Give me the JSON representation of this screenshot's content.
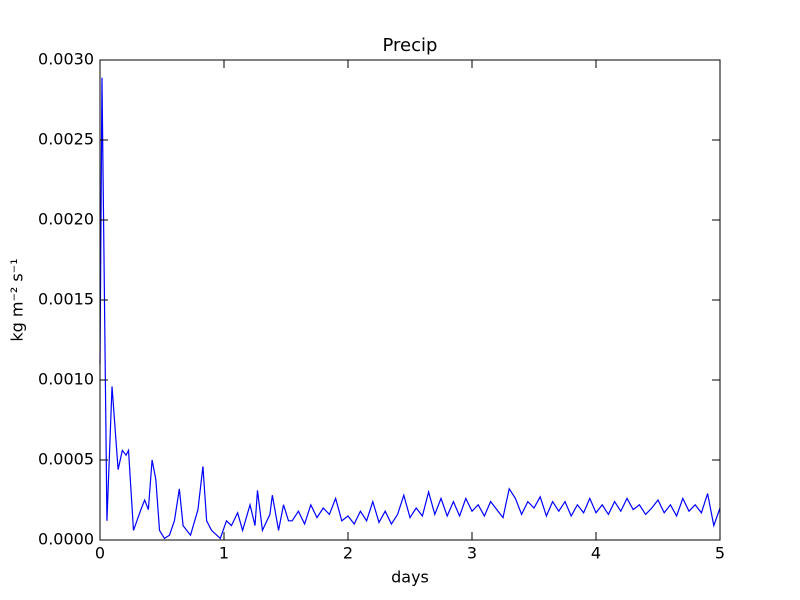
{
  "chart_data": {
    "type": "line",
    "title": "Precip",
    "x_label": "days",
    "y_label": "kg m⁻² s⁻¹",
    "color": "#0000ff",
    "x": [
      0,
      0.016,
      0.056,
      0.097,
      0.146,
      0.18,
      0.21,
      0.23,
      0.27,
      0.33,
      0.36,
      0.39,
      0.42,
      0.45,
      0.48,
      0.52,
      0.56,
      0.6,
      0.64,
      0.67,
      0.73,
      0.79,
      0.83,
      0.86,
      0.9,
      0.97,
      1.02,
      1.06,
      1.11,
      1.15,
      1.21,
      1.25,
      1.27,
      1.31,
      1.37,
      1.39,
      1.44,
      1.48,
      1.52,
      1.55,
      1.6,
      1.65,
      1.7,
      1.75,
      1.8,
      1.85,
      1.9,
      1.95,
      2.0,
      2.05,
      2.1,
      2.15,
      2.2,
      2.25,
      2.3,
      2.35,
      2.4,
      2.45,
      2.5,
      2.55,
      2.6,
      2.65,
      2.7,
      2.75,
      2.8,
      2.85,
      2.9,
      2.95,
      3.0,
      3.05,
      3.1,
      3.15,
      3.2,
      3.25,
      3.3,
      3.35,
      3.4,
      3.45,
      3.5,
      3.55,
      3.6,
      3.65,
      3.7,
      3.75,
      3.8,
      3.85,
      3.9,
      3.95,
      4.0,
      4.05,
      4.1,
      4.15,
      4.2,
      4.25,
      4.3,
      4.35,
      4.4,
      4.45,
      4.5,
      4.55,
      4.6,
      4.65,
      4.7,
      4.75,
      4.8,
      4.85,
      4.9,
      4.95,
      5.0
    ],
    "values": [
      0.0011,
      0.00289,
      0.00012,
      0.00096,
      0.00044,
      0.00056,
      0.00053,
      0.00056,
      6e-05,
      0.00019,
      0.00025,
      0.00019,
      0.0005,
      0.00038,
      6e-05,
      1e-05,
      3e-05,
      0.00012,
      0.00032,
      9e-05,
      3e-05,
      0.00019,
      0.00046,
      0.00012,
      6e-05,
      1e-05,
      0.00012,
      9e-05,
      0.00017,
      6e-05,
      0.00022,
      9e-05,
      0.00031,
      6e-05,
      0.00016,
      0.00028,
      6e-05,
      0.00022,
      0.00012,
      0.00012,
      0.00018,
      0.0001,
      0.00022,
      0.00014,
      0.0002,
      0.00016,
      0.00026,
      0.00012,
      0.00015,
      0.0001,
      0.00018,
      0.00012,
      0.00024,
      0.00011,
      0.00018,
      0.0001,
      0.00016,
      0.00028,
      0.00014,
      0.0002,
      0.00015,
      0.0003,
      0.00016,
      0.00026,
      0.00015,
      0.00024,
      0.00015,
      0.00026,
      0.00018,
      0.00022,
      0.00015,
      0.00024,
      0.00019,
      0.00014,
      0.00032,
      0.00026,
      0.00016,
      0.00024,
      0.0002,
      0.00027,
      0.00015,
      0.00024,
      0.00018,
      0.00024,
      0.00015,
      0.00022,
      0.00017,
      0.00026,
      0.00017,
      0.00022,
      0.00016,
      0.00024,
      0.00018,
      0.00026,
      0.00019,
      0.00022,
      0.00016,
      0.0002,
      0.00025,
      0.00017,
      0.00022,
      0.00015,
      0.00026,
      0.00018,
      0.00022,
      0.00017,
      0.00029,
      9e-05,
      0.0002
    ],
    "xlim": [
      0,
      5
    ],
    "xticks": [
      0,
      1,
      2,
      3,
      4,
      5
    ],
    "ylim": [
      0,
      0.003
    ],
    "yticks": [
      {
        "value": 0,
        "label": "0.0000"
      },
      {
        "value": 0.0005,
        "label": "0.0005"
      },
      {
        "value": 0.001,
        "label": "0.0010"
      },
      {
        "value": 0.0015,
        "label": "0.0015"
      },
      {
        "value": 0.002,
        "label": "0.0020"
      },
      {
        "value": 0.0025,
        "label": "0.0025"
      },
      {
        "value": 0.003,
        "label": "0.0030"
      }
    ]
  }
}
